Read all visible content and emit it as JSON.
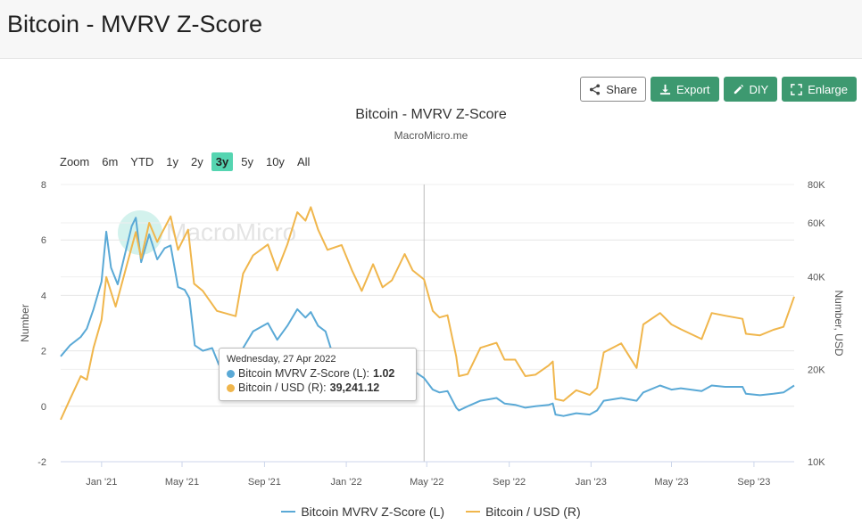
{
  "page_title": "Bitcoin - MVRV Z-Score",
  "toolbar": {
    "share_label": "Share",
    "export_label": "Export",
    "diy_label": "DIY",
    "enlarge_label": "Enlarge"
  },
  "zoom": {
    "label": "Zoom",
    "options": [
      "6m",
      "YTD",
      "1y",
      "2y",
      "3y",
      "5y",
      "10y",
      "All"
    ],
    "active": "3y"
  },
  "watermark": "MacroMicro",
  "tooltip": {
    "date": "Wednesday, 27 Apr 2022",
    "series1_label": "Bitcoin MVRV Z-Score (L):",
    "series1_value": "1.02",
    "series2_label": "Bitcoin / USD (R):",
    "series2_value": "39,241.12"
  },
  "colors": {
    "zscore": "#5aa9d6",
    "price": "#f0b64c",
    "accent_green": "#3d9970",
    "zoom_active": "#55d5b1"
  },
  "chart_data": {
    "type": "line",
    "title": "Bitcoin - MVRV Z-Score",
    "subtitle": "MacroMicro.me",
    "ylabel_left": "Number",
    "ylabel_right": "Number, USD",
    "ylim_left": [
      -2,
      8
    ],
    "yticks_left": [
      "8",
      "6",
      "4",
      "2",
      "0",
      "-2"
    ],
    "yticks_left_values": [
      8,
      6,
      4,
      2,
      0,
      -2
    ],
    "yscale_right": "log",
    "ylim_right": [
      10000,
      80000
    ],
    "yticks_right": [
      "80K",
      "60K",
      "40K",
      "20K",
      "10K"
    ],
    "yticks_right_values": [
      80000,
      60000,
      40000,
      20000,
      10000
    ],
    "xlim": [
      "2020-11-01",
      "2023-10-31"
    ],
    "xticks": [
      "Jan '21",
      "May '21",
      "Sep '21",
      "Jan '22",
      "May '22",
      "Sep '22",
      "Jan '23",
      "May '23",
      "Sep '23"
    ],
    "xticks_dates": [
      "2021-01-01",
      "2021-05-01",
      "2021-09-01",
      "2022-01-01",
      "2022-05-01",
      "2022-09-01",
      "2023-01-01",
      "2023-05-01",
      "2023-09-01"
    ],
    "crosshair_date": "2022-04-27",
    "grid": true,
    "legend_position": "bottom",
    "series": [
      {
        "name": "Bitcoin MVRV Z-Score (L)",
        "axis": "left",
        "points": [
          [
            "2020-11-01",
            1.8
          ],
          [
            "2020-11-15",
            2.2
          ],
          [
            "2020-12-01",
            2.5
          ],
          [
            "2020-12-10",
            2.8
          ],
          [
            "2020-12-20",
            3.5
          ],
          [
            "2021-01-01",
            4.5
          ],
          [
            "2021-01-08",
            6.3
          ],
          [
            "2021-01-15",
            5.0
          ],
          [
            "2021-01-25",
            4.4
          ],
          [
            "2021-02-05",
            5.5
          ],
          [
            "2021-02-10",
            6.0
          ],
          [
            "2021-02-15",
            6.5
          ],
          [
            "2021-02-21",
            6.8
          ],
          [
            "2021-03-01",
            5.2
          ],
          [
            "2021-03-13",
            6.2
          ],
          [
            "2021-03-25",
            5.3
          ],
          [
            "2021-04-05",
            5.7
          ],
          [
            "2021-04-14",
            5.8
          ],
          [
            "2021-04-25",
            4.3
          ],
          [
            "2021-05-05",
            4.2
          ],
          [
            "2021-05-12",
            3.9
          ],
          [
            "2021-05-20",
            2.2
          ],
          [
            "2021-06-01",
            2.0
          ],
          [
            "2021-06-15",
            2.1
          ],
          [
            "2021-06-25",
            1.5
          ],
          [
            "2021-07-10",
            1.6
          ],
          [
            "2021-07-20",
            1.4
          ],
          [
            "2021-07-31",
            2.1
          ],
          [
            "2021-08-15",
            2.7
          ],
          [
            "2021-09-06",
            3.0
          ],
          [
            "2021-09-20",
            2.4
          ],
          [
            "2021-10-05",
            2.9
          ],
          [
            "2021-10-20",
            3.5
          ],
          [
            "2021-11-01",
            3.2
          ],
          [
            "2021-11-09",
            3.4
          ],
          [
            "2021-11-20",
            2.9
          ],
          [
            "2021-12-01",
            2.7
          ],
          [
            "2021-12-10",
            2.0
          ],
          [
            "2021-12-25",
            1.9
          ],
          [
            "2022-01-10",
            1.4
          ],
          [
            "2022-01-24",
            1.1
          ],
          [
            "2022-02-10",
            1.5
          ],
          [
            "2022-02-24",
            1.2
          ],
          [
            "2022-03-10",
            1.3
          ],
          [
            "2022-03-29",
            1.6
          ],
          [
            "2022-04-10",
            1.3
          ],
          [
            "2022-04-27",
            1.02
          ],
          [
            "2022-05-10",
            0.6
          ],
          [
            "2022-05-20",
            0.5
          ],
          [
            "2022-06-01",
            0.55
          ],
          [
            "2022-06-14",
            -0.05
          ],
          [
            "2022-06-18",
            -0.15
          ],
          [
            "2022-07-01",
            0.0
          ],
          [
            "2022-07-20",
            0.2
          ],
          [
            "2022-08-13",
            0.3
          ],
          [
            "2022-08-25",
            0.1
          ],
          [
            "2022-09-10",
            0.05
          ],
          [
            "2022-09-25",
            -0.05
          ],
          [
            "2022-10-10",
            0.0
          ],
          [
            "2022-10-30",
            0.05
          ],
          [
            "2022-11-05",
            0.1
          ],
          [
            "2022-11-09",
            -0.3
          ],
          [
            "2022-11-21",
            -0.35
          ],
          [
            "2022-12-10",
            -0.25
          ],
          [
            "2022-12-30",
            -0.3
          ],
          [
            "2023-01-10",
            -0.15
          ],
          [
            "2023-01-20",
            0.2
          ],
          [
            "2023-02-15",
            0.3
          ],
          [
            "2023-03-10",
            0.2
          ],
          [
            "2023-03-20",
            0.5
          ],
          [
            "2023-04-14",
            0.75
          ],
          [
            "2023-05-01",
            0.6
          ],
          [
            "2023-05-15",
            0.65
          ],
          [
            "2023-06-15",
            0.55
          ],
          [
            "2023-06-30",
            0.75
          ],
          [
            "2023-07-20",
            0.7
          ],
          [
            "2023-08-15",
            0.7
          ],
          [
            "2023-08-20",
            0.45
          ],
          [
            "2023-09-10",
            0.4
          ],
          [
            "2023-09-30",
            0.45
          ],
          [
            "2023-10-15",
            0.5
          ],
          [
            "2023-10-31",
            0.75
          ]
        ]
      },
      {
        "name": "Bitcoin / USD (R)",
        "axis": "right",
        "points": [
          [
            "2020-11-01",
            13700
          ],
          [
            "2020-11-15",
            16000
          ],
          [
            "2020-12-01",
            19000
          ],
          [
            "2020-12-10",
            18500
          ],
          [
            "2020-12-20",
            23500
          ],
          [
            "2021-01-01",
            29000
          ],
          [
            "2021-01-08",
            40000
          ],
          [
            "2021-01-22",
            32000
          ],
          [
            "2021-02-08",
            44000
          ],
          [
            "2021-02-21",
            56000
          ],
          [
            "2021-03-01",
            46000
          ],
          [
            "2021-03-13",
            60000
          ],
          [
            "2021-03-25",
            52000
          ],
          [
            "2021-04-14",
            63000
          ],
          [
            "2021-04-25",
            49000
          ],
          [
            "2021-05-10",
            57000
          ],
          [
            "2021-05-19",
            38000
          ],
          [
            "2021-06-01",
            36000
          ],
          [
            "2021-06-22",
            31000
          ],
          [
            "2021-07-20",
            29800
          ],
          [
            "2021-07-31",
            41000
          ],
          [
            "2021-08-15",
            47000
          ],
          [
            "2021-09-06",
            51000
          ],
          [
            "2021-09-20",
            42000
          ],
          [
            "2021-10-05",
            51000
          ],
          [
            "2021-10-20",
            65000
          ],
          [
            "2021-11-01",
            61000
          ],
          [
            "2021-11-09",
            67500
          ],
          [
            "2021-11-20",
            57000
          ],
          [
            "2021-12-04",
            49000
          ],
          [
            "2021-12-25",
            50800
          ],
          [
            "2022-01-10",
            41800
          ],
          [
            "2022-01-24",
            36000
          ],
          [
            "2022-02-10",
            44000
          ],
          [
            "2022-02-24",
            37000
          ],
          [
            "2022-03-10",
            39000
          ],
          [
            "2022-03-29",
            47500
          ],
          [
            "2022-04-10",
            42000
          ],
          [
            "2022-04-27",
            39241.12
          ],
          [
            "2022-05-10",
            31000
          ],
          [
            "2022-05-20",
            29500
          ],
          [
            "2022-06-01",
            30000
          ],
          [
            "2022-06-14",
            22000
          ],
          [
            "2022-06-18",
            19000
          ],
          [
            "2022-07-01",
            19300
          ],
          [
            "2022-07-20",
            23500
          ],
          [
            "2022-08-13",
            24400
          ],
          [
            "2022-08-25",
            21500
          ],
          [
            "2022-09-10",
            21500
          ],
          [
            "2022-09-25",
            19000
          ],
          [
            "2022-10-10",
            19200
          ],
          [
            "2022-10-30",
            20600
          ],
          [
            "2022-11-05",
            21200
          ],
          [
            "2022-11-09",
            16000
          ],
          [
            "2022-11-21",
            15800
          ],
          [
            "2022-12-10",
            17100
          ],
          [
            "2022-12-30",
            16500
          ],
          [
            "2023-01-10",
            17400
          ],
          [
            "2023-01-20",
            22700
          ],
          [
            "2023-02-15",
            24300
          ],
          [
            "2023-03-10",
            20200
          ],
          [
            "2023-03-20",
            28000
          ],
          [
            "2023-04-14",
            30500
          ],
          [
            "2023-05-01",
            28000
          ],
          [
            "2023-05-15",
            27000
          ],
          [
            "2023-06-15",
            25100
          ],
          [
            "2023-06-30",
            30500
          ],
          [
            "2023-07-20",
            29900
          ],
          [
            "2023-08-15",
            29200
          ],
          [
            "2023-08-20",
            26100
          ],
          [
            "2023-09-10",
            25800
          ],
          [
            "2023-09-30",
            26900
          ],
          [
            "2023-10-15",
            27500
          ],
          [
            "2023-10-31",
            34500
          ]
        ]
      }
    ]
  }
}
